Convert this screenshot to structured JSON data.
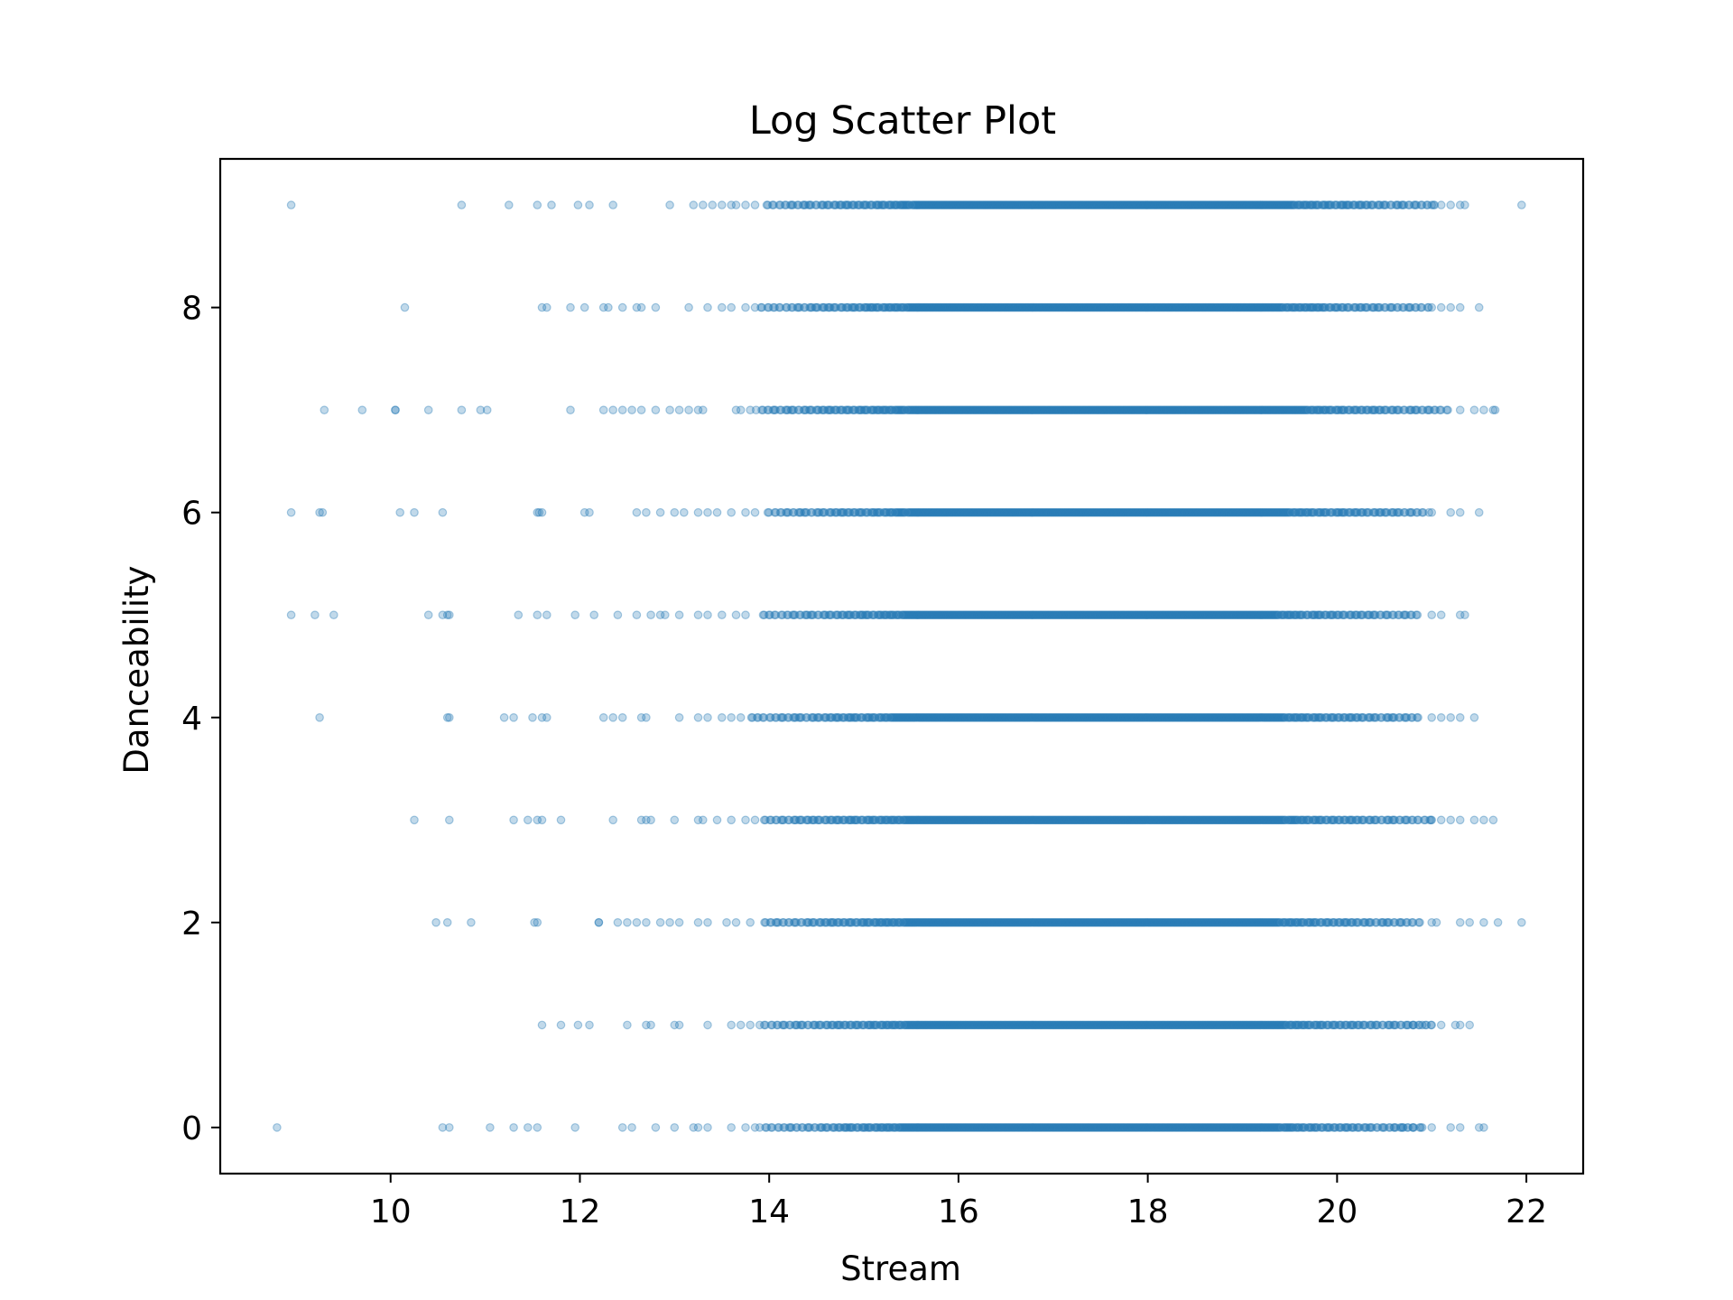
{
  "chart_data": {
    "type": "scatter",
    "title": "Log Scatter Plot",
    "xlabel": "Stream",
    "ylabel": "Danceability",
    "xlim": [
      8.2,
      22.6
    ],
    "ylim": [
      -0.45,
      9.45
    ],
    "xticks": [
      10,
      12,
      14,
      16,
      18,
      20,
      22
    ],
    "yticks": [
      0,
      2,
      4,
      6,
      8
    ],
    "grid": false,
    "legend": "none",
    "marker_color": "#1f77b4",
    "marker_alpha": 0.28,
    "series": [
      {
        "values_note_excluded": true,
        "points_by_level": [
          {
            "y": 0,
            "x": [
              8.8,
              10.55,
              10.62,
              11.05,
              11.3,
              11.45,
              11.55,
              11.95,
              12.45,
              12.55,
              12.8,
              13.0,
              13.2,
              13.25,
              13.35,
              13.6,
              13.75,
              13.85,
              20.6,
              20.7,
              20.8,
              20.9,
              21.0,
              21.2,
              21.3,
              21.5,
              21.55
            ],
            "dense": [
              13.9,
              20.9
            ]
          },
          {
            "y": 1,
            "x": [
              11.6,
              11.8,
              11.98,
              12.1,
              12.5,
              12.7,
              12.75,
              13.0,
              13.05,
              13.35,
              13.6,
              13.7,
              13.8,
              20.8,
              20.9,
              21.0,
              21.1,
              21.25,
              21.3,
              21.4
            ],
            "dense": [
              13.9,
              21.0
            ]
          },
          {
            "y": 2,
            "x": [
              10.48,
              10.6,
              10.85,
              11.52,
              11.55,
              12.2,
              12.2,
              12.4,
              12.5,
              12.6,
              12.7,
              12.85,
              12.95,
              13.05,
              13.25,
              13.35,
              13.55,
              13.65,
              13.8,
              21.0,
              21.05,
              21.3,
              21.4,
              21.55,
              21.7,
              21.95
            ],
            "dense": [
              13.95,
              20.9
            ]
          },
          {
            "y": 3,
            "x": [
              10.25,
              10.62,
              11.3,
              11.45,
              11.55,
              11.6,
              11.8,
              12.35,
              12.65,
              12.7,
              12.75,
              13.0,
              13.25,
              13.3,
              13.45,
              13.6,
              13.75,
              13.85,
              21.0,
              21.1,
              21.2,
              21.3,
              21.45,
              21.55,
              21.65
            ],
            "dense": [
              13.9,
              21.0
            ]
          },
          {
            "y": 4,
            "x": [
              9.25,
              10.6,
              10.62,
              11.2,
              11.3,
              11.5,
              11.6,
              11.65,
              12.25,
              12.35,
              12.45,
              12.65,
              12.7,
              13.05,
              13.25,
              13.35,
              13.5,
              13.6,
              13.7,
              21.0,
              21.1,
              21.2,
              21.3,
              21.45
            ],
            "dense": [
              13.8,
              20.9
            ]
          },
          {
            "y": 5,
            "x": [
              8.95,
              9.2,
              9.4,
              10.4,
              10.55,
              10.6,
              10.62,
              11.35,
              11.55,
              11.65,
              11.95,
              12.15,
              12.4,
              12.6,
              12.75,
              12.85,
              12.9,
              13.05,
              13.25,
              13.35,
              13.5,
              13.65,
              13.75,
              21.0,
              21.1,
              21.3,
              21.35
            ],
            "dense": [
              13.9,
              20.9
            ]
          },
          {
            "y": 6,
            "x": [
              8.95,
              9.25,
              9.28,
              10.1,
              10.25,
              10.55,
              11.55,
              11.57,
              11.6,
              12.05,
              12.1,
              12.6,
              12.7,
              12.85,
              13.0,
              13.1,
              13.25,
              13.35,
              13.45,
              13.6,
              13.75,
              13.85,
              21.0,
              21.2,
              21.3,
              21.5
            ],
            "dense": [
              13.95,
              21.0
            ]
          },
          {
            "y": 7,
            "x": [
              9.3,
              9.7,
              10.05,
              10.05,
              10.4,
              10.75,
              10.95,
              11.02,
              11.9,
              12.25,
              12.35,
              12.45,
              12.55,
              12.65,
              12.8,
              12.95,
              13.05,
              13.15,
              13.25,
              13.3,
              13.65,
              13.7,
              13.8,
              21.3,
              21.45,
              21.55,
              21.65,
              21.67
            ],
            "dense": [
              13.85,
              21.2
            ]
          },
          {
            "y": 8,
            "x": [
              10.15,
              11.6,
              11.65,
              11.9,
              12.05,
              12.25,
              12.3,
              12.45,
              12.6,
              12.65,
              12.8,
              13.15,
              13.35,
              13.5,
              13.6,
              13.75,
              13.85,
              21.0,
              21.1,
              21.2,
              21.3,
              21.5
            ],
            "dense": [
              13.9,
              21.0
            ]
          },
          {
            "y": 9,
            "x": [
              8.95,
              10.75,
              11.25,
              11.55,
              11.7,
              11.98,
              12.1,
              12.35,
              12.95,
              13.2,
              13.3,
              13.4,
              13.5,
              13.6,
              13.65,
              13.75,
              13.85,
              21.0,
              21.1,
              21.2,
              21.3,
              21.35,
              21.95
            ],
            "dense": [
              13.95,
              21.05
            ]
          }
        ]
      }
    ]
  }
}
